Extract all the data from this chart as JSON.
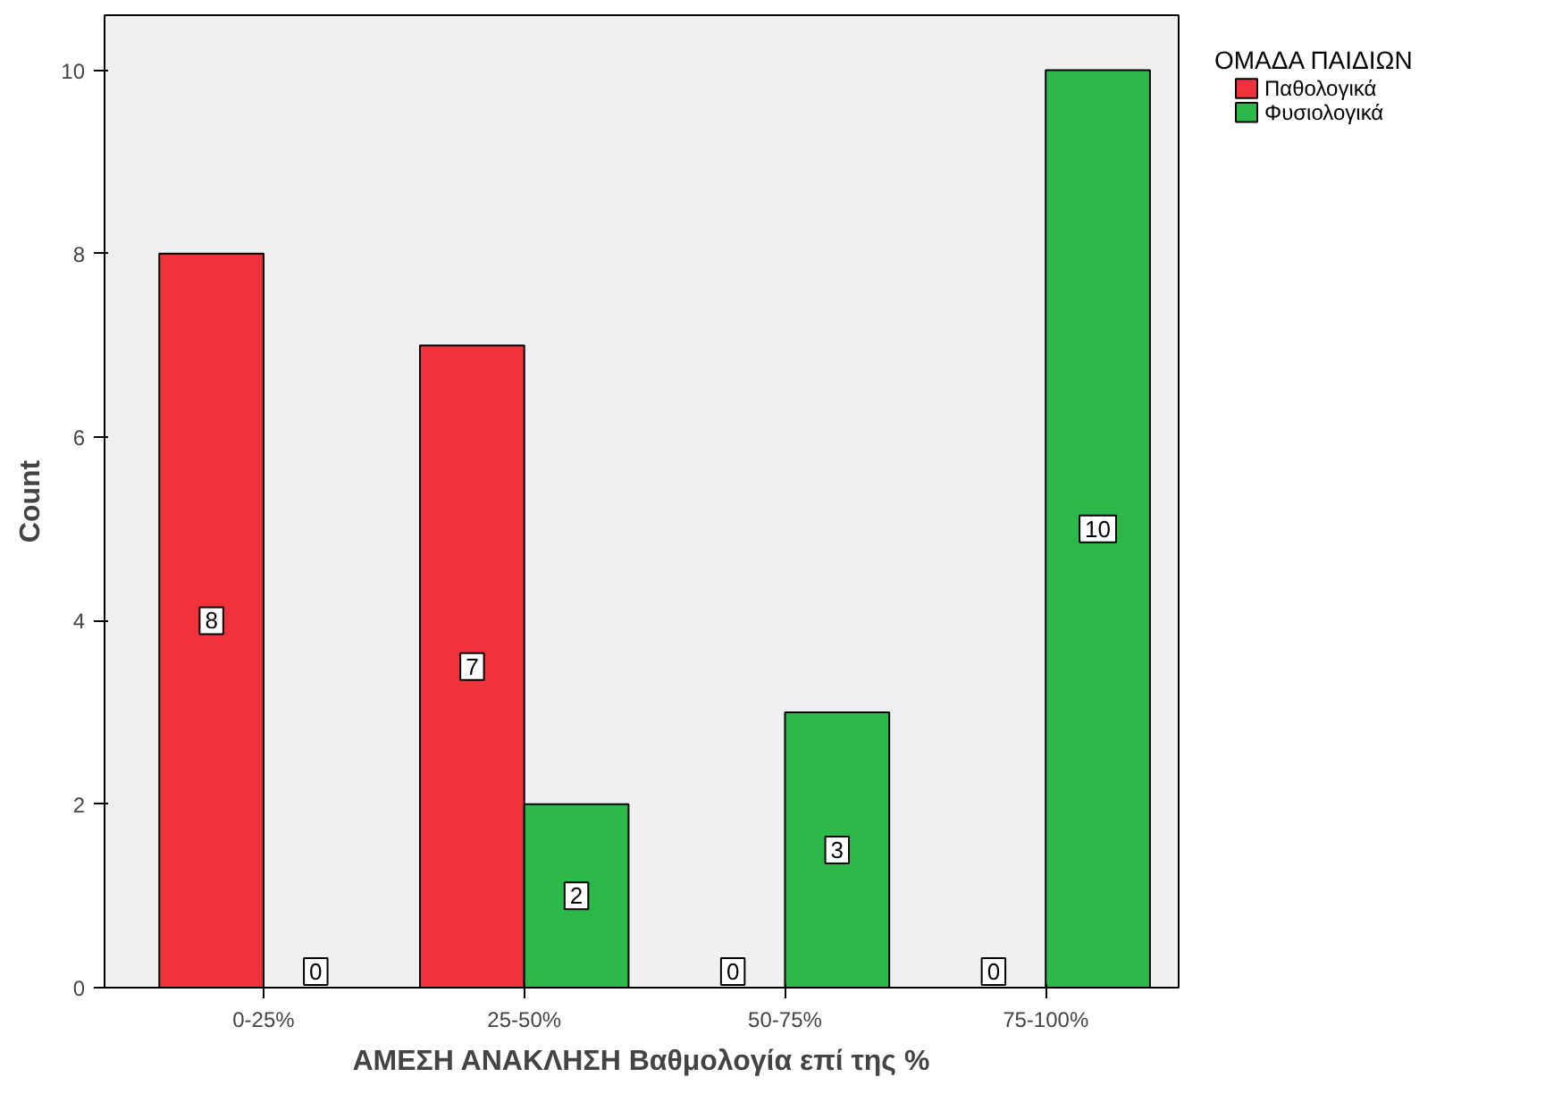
{
  "chart_data": {
    "type": "bar",
    "xlabel": "ΑΜΕΣΗ ΑΝΑΚΛΗΣΗ Βαθμολογία επί της %",
    "ylabel": "Count",
    "legend_title": "ΟΜΑΔΑ ΠΑΙΔΙΩΝ",
    "categories": [
      "0-25%",
      "25-50%",
      "50-75%",
      "75-100%"
    ],
    "series": [
      {
        "name": "Παθολογικά",
        "color": "#f0333a",
        "values": [
          8,
          7,
          0,
          0
        ]
      },
      {
        "name": "Φυσιολογικά",
        "color": "#2db84a",
        "values": [
          0,
          2,
          3,
          10
        ]
      }
    ],
    "ylim": [
      0,
      10.6
    ],
    "yticks": [
      0,
      2,
      4,
      6,
      8,
      10
    ],
    "grid": false,
    "legend": "top right",
    "data_labels": true
  }
}
